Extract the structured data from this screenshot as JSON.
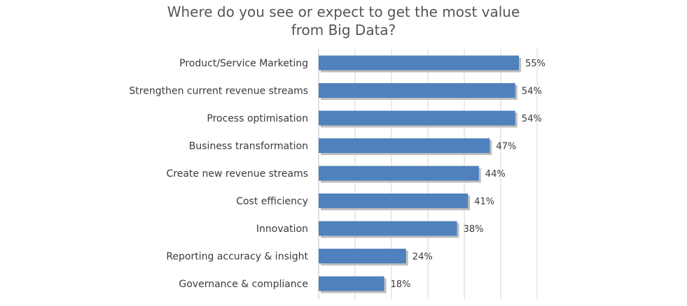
{
  "chart_data": {
    "type": "bar",
    "orientation": "horizontal",
    "title": [
      "Where do you see or expect to get the most value",
      "from Big Data?"
    ],
    "categories": [
      "Product/Service Marketing",
      "Strengthen current revenue streams",
      "Process optimisation",
      "Business transformation",
      "Create new revenue streams",
      "Cost efficiency",
      "Innovation",
      "Reporting accuracy & insight",
      "Governance & compliance"
    ],
    "values": [
      55,
      54,
      54,
      47,
      44,
      41,
      38,
      24,
      18
    ],
    "value_labels": [
      "55%",
      "54%",
      "54%",
      "47%",
      "44%",
      "41%",
      "38%",
      "24%",
      "18%"
    ],
    "xlim": [
      0,
      60
    ],
    "grid": true,
    "legend": "none",
    "bar_color": "#4f81bd",
    "shadow_color": "#bfbfbf"
  }
}
